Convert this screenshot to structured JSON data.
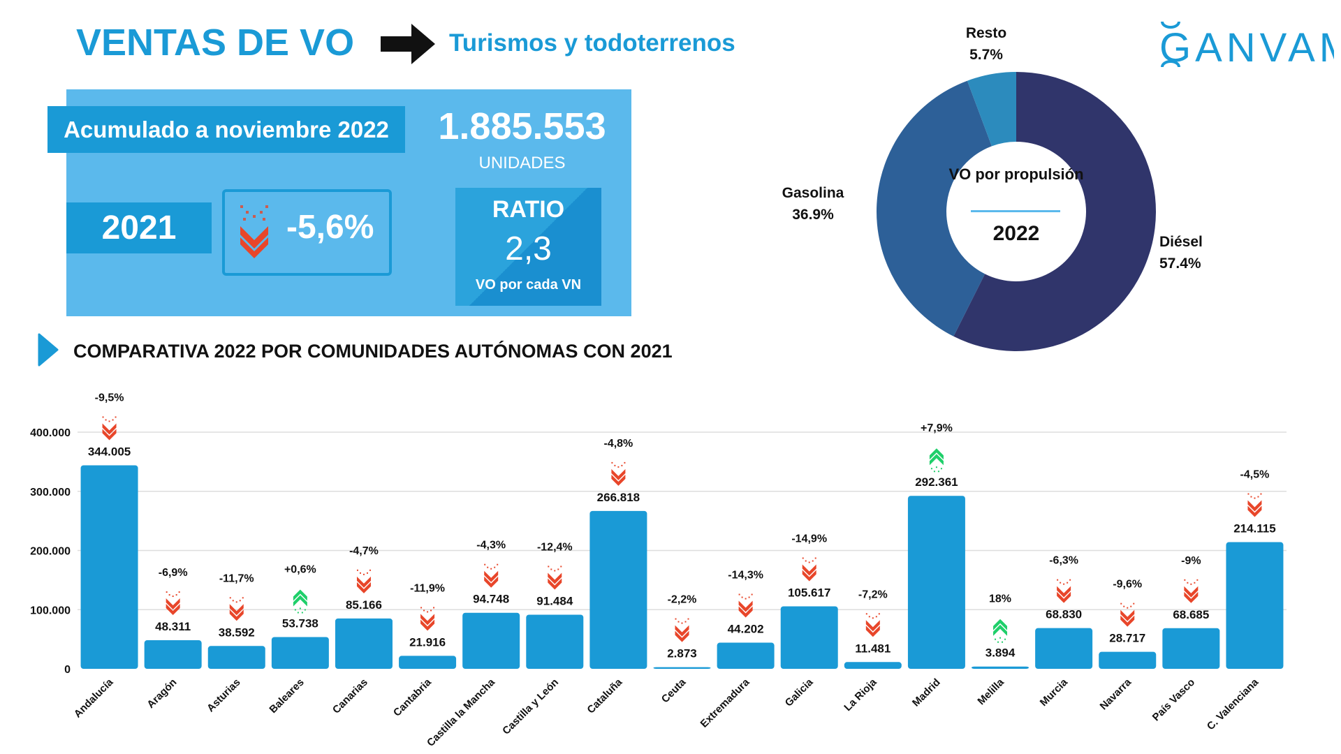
{
  "header": {
    "title": "VENTAS DE VO",
    "subtitle": "Turismos y todoterrenos",
    "logo_text": "GANVAM",
    "arrow_icon": "right-arrow-icon"
  },
  "summary": {
    "period_label": "Acumulado a noviembre 2022",
    "total": "1.885.553",
    "units_label": "UNIDADES",
    "compare_year": "2021",
    "variation": "-5,6%",
    "variation_direction": "down",
    "ratio_title": "RATIO",
    "ratio_value": "2,3",
    "ratio_sub": "VO por cada VN"
  },
  "colors": {
    "accent": "#1a9ad6",
    "panel": "#5bb9ec",
    "down": "#e8462a",
    "up": "#1fcf6a",
    "diesel": "#30356b",
    "gasolina": "#2d6098",
    "resto": "#2c8bbd"
  },
  "section": {
    "title": "COMPARATIVA 2022 POR COMUNIDADES AUTÓNOMAS CON 2021"
  },
  "chart_data": [
    {
      "type": "pie",
      "center_title": "VO por propulsión",
      "center_year": "2022",
      "slices": [
        {
          "name": "Diésel",
          "value": 57.4,
          "label": "57.4%",
          "color": "#30356b"
        },
        {
          "name": "Gasolina",
          "value": 36.9,
          "label": "36.9%",
          "color": "#2d6098"
        },
        {
          "name": "Resto",
          "value": 5.7,
          "label": "5.7%",
          "color": "#2c8bbd"
        }
      ]
    },
    {
      "type": "bar",
      "ylim": [
        0,
        400000
      ],
      "yticks": [
        "0",
        "100.000",
        "200.000",
        "300.000",
        "400.000"
      ],
      "ytick_values": [
        0,
        100000,
        200000,
        300000,
        400000
      ],
      "grid": true,
      "categories": [
        "Andalucía",
        "Aragón",
        "Asturias",
        "Baleares",
        "Canarias",
        "Cantabria",
        "Castilla la Mancha",
        "Castilla y León",
        "Cataluña",
        "Ceuta",
        "Extremadura",
        "Galicia",
        "La Rioja",
        "Madrid",
        "Melilla",
        "Murcia",
        "Navarra",
        "País Vasco",
        "C. Valenciana"
      ],
      "values": [
        344005,
        48311,
        38592,
        53738,
        85166,
        21916,
        94748,
        91484,
        266818,
        2873,
        44202,
        105617,
        11481,
        292361,
        3894,
        68830,
        28717,
        68685,
        214115
      ],
      "value_labels": [
        "344.005",
        "48.311",
        "38.592",
        "53.738",
        "85.166",
        "21.916",
        "94.748",
        "91.484",
        "266.818",
        "2.873",
        "44.202",
        "105.617",
        "11.481",
        "292.361",
        "3.894",
        "68.830",
        "28.717",
        "68.685",
        "214.115"
      ],
      "changes": [
        "-9,5%",
        "-6,9%",
        "-11,7%",
        "+0,6%",
        "-4,7%",
        "-11,9%",
        "-4,3%",
        "-12,4%",
        "-4,8%",
        "-2,2%",
        "-14,3%",
        "-14,9%",
        "-7,2%",
        "+7,9%",
        "18%",
        "-6,3%",
        "-9,6%",
        "-9%",
        "-4,5%"
      ],
      "directions": [
        "down",
        "down",
        "down",
        "up",
        "down",
        "down",
        "down",
        "down",
        "down",
        "down",
        "down",
        "down",
        "down",
        "up",
        "up",
        "down",
        "down",
        "down",
        "down"
      ]
    }
  ]
}
